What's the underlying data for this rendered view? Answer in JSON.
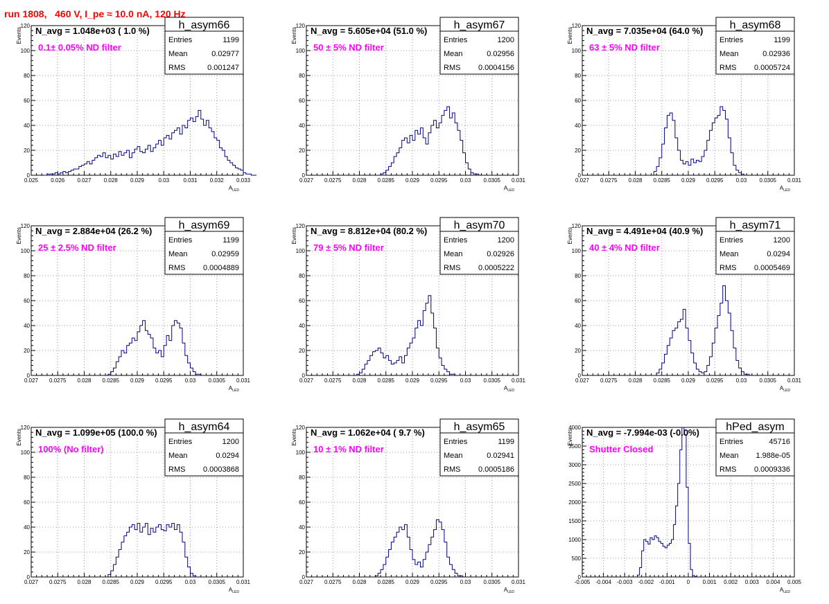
{
  "header": {
    "title": "run 1808,   460 V, I_pe ≈ 10.0 nA, 120 Hz"
  },
  "chart_data": [
    {
      "type": "histogram",
      "name": "h_asym66",
      "navg": "N_avg = 1.048e+03 ( 1.0 %)",
      "filter": "0.1± 0.05% ND filter",
      "stats": {
        "entries": "1199",
        "mean": "0.02977",
        "rms": "0.001247"
      },
      "xlim": [
        0.025,
        0.033
      ],
      "ylim": [
        0,
        120
      ],
      "xticks": [
        "0.025",
        "0.026",
        "0.027",
        "0.028",
        "0.029",
        "0.03",
        "0.031",
        "0.032",
        "0.033"
      ],
      "yticks": [
        "0",
        "20",
        "40",
        "60",
        "80",
        "100",
        "120"
      ],
      "xlabel": "A",
      "xlabel_sub": "LED",
      "ylabel": "Events",
      "x_start": 0.0255,
      "bin_width": 0.0001,
      "values": [
        0,
        1,
        1,
        1,
        2,
        1,
        2,
        3,
        2,
        3,
        4,
        5,
        5,
        7,
        8,
        9,
        11,
        9,
        12,
        14,
        16,
        15,
        18,
        14,
        16,
        13,
        17,
        15,
        19,
        16,
        18,
        20,
        14,
        18,
        21,
        23,
        19,
        18,
        21,
        24,
        19,
        22,
        25,
        28,
        24,
        30,
        32,
        29,
        34,
        36,
        38,
        33,
        40,
        38,
        44,
        46,
        43,
        47,
        52,
        45,
        40,
        44,
        38,
        35,
        30,
        28,
        22,
        20,
        15,
        12,
        10,
        8,
        6,
        5,
        4,
        2,
        1,
        1,
        0,
        0
      ]
    },
    {
      "type": "histogram",
      "name": "h_asym67",
      "navg": "N_avg = 5.605e+04 (51.0 %)",
      "filter": "50 ± 5% ND filter",
      "stats": {
        "entries": "1200",
        "mean": "0.02956",
        "rms": "0.0004156"
      },
      "xlim": [
        0.027,
        0.031
      ],
      "ylim": [
        0,
        120
      ],
      "xticks": [
        "0.027",
        "0.0275",
        "0.028",
        "0.0285",
        "0.029",
        "0.0295",
        "0.03",
        "0.0305",
        "0.031"
      ],
      "yticks": [
        "0",
        "20",
        "40",
        "60",
        "80",
        "100",
        "120"
      ],
      "xlabel": "A",
      "xlabel_sub": "LED",
      "ylabel": "Events",
      "x_start": 0.0284,
      "bin_width": 5e-05,
      "values": [
        1,
        2,
        4,
        7,
        10,
        15,
        18,
        22,
        28,
        30,
        26,
        32,
        28,
        36,
        33,
        38,
        30,
        25,
        34,
        40,
        44,
        38,
        42,
        48,
        52,
        55,
        46,
        50,
        42,
        36,
        28,
        18,
        10,
        5,
        2,
        1,
        1
      ]
    },
    {
      "type": "histogram",
      "name": "h_asym68",
      "navg": "N_avg = 7.035e+04 (64.0 %)",
      "filter": "63 ± 5% ND filter",
      "stats": {
        "entries": "1199",
        "mean": "0.02936",
        "rms": "0.0005724"
      },
      "xlim": [
        0.027,
        0.031
      ],
      "ylim": [
        0,
        120
      ],
      "xticks": [
        "0.027",
        "0.0275",
        "0.028",
        "0.0285",
        "0.029",
        "0.0295",
        "0.03",
        "0.0305",
        "0.031"
      ],
      "yticks": [
        "0",
        "20",
        "40",
        "60",
        "80",
        "100",
        "120"
      ],
      "xlabel": "A",
      "xlabel_sub": "LED",
      "ylabel": "Events",
      "x_start": 0.02835,
      "bin_width": 5e-05,
      "values": [
        3,
        7,
        14,
        25,
        38,
        48,
        50,
        44,
        30,
        20,
        12,
        9,
        11,
        8,
        13,
        10,
        12,
        11,
        15,
        20,
        28,
        36,
        42,
        46,
        48,
        55,
        52,
        45,
        30,
        18,
        8,
        4,
        2,
        1
      ]
    },
    {
      "type": "histogram",
      "name": "h_asym69",
      "navg": "N_avg = 2.884e+04 (26.2 %)",
      "filter": "25 ± 2.5% ND filter",
      "stats": {
        "entries": "1199",
        "mean": "0.02959",
        "rms": "0.0004889"
      },
      "xlim": [
        0.027,
        0.031
      ],
      "ylim": [
        0,
        120
      ],
      "xticks": [
        "0.027",
        "0.0275",
        "0.028",
        "0.0285",
        "0.029",
        "0.0295",
        "0.03",
        "0.0305",
        "0.031"
      ],
      "yticks": [
        "0",
        "20",
        "40",
        "60",
        "80",
        "100",
        "120"
      ],
      "xlabel": "A",
      "xlabel_sub": "LED",
      "ylabel": "Events",
      "x_start": 0.02845,
      "bin_width": 5e-05,
      "values": [
        1,
        3,
        6,
        11,
        15,
        20,
        18,
        24,
        26,
        30,
        28,
        35,
        40,
        44,
        36,
        33,
        30,
        22,
        18,
        20,
        15,
        24,
        32,
        28,
        40,
        44,
        42,
        38,
        26,
        16,
        10,
        6,
        3,
        1,
        1
      ]
    },
    {
      "type": "histogram",
      "name": "h_asym70",
      "navg": "N_avg = 8.812e+04 (80.2 %)",
      "filter": "79 ± 5% ND filter",
      "stats": {
        "entries": "1200",
        "mean": "0.02926",
        "rms": "0.0005222"
      },
      "xlim": [
        0.027,
        0.031
      ],
      "ylim": [
        0,
        120
      ],
      "xticks": [
        "0.027",
        "0.0275",
        "0.028",
        "0.0285",
        "0.029",
        "0.0295",
        "0.03",
        "0.0305",
        "0.031"
      ],
      "yticks": [
        "0",
        "20",
        "40",
        "60",
        "80",
        "100",
        "120"
      ],
      "xlabel": "A",
      "xlabel_sub": "LED",
      "ylabel": "Events",
      "x_start": 0.02795,
      "bin_width": 5e-05,
      "values": [
        1,
        2,
        5,
        9,
        12,
        16,
        19,
        20,
        22,
        18,
        14,
        16,
        12,
        9,
        10,
        12,
        15,
        10,
        16,
        22,
        26,
        30,
        38,
        44,
        40,
        52,
        58,
        64,
        50,
        38,
        22,
        14,
        8,
        5,
        3,
        1,
        1
      ]
    },
    {
      "type": "histogram",
      "name": "h_asym71",
      "navg": "N_avg = 4.491e+04 (40.9 %)",
      "filter": "40 ± 4% ND filter",
      "stats": {
        "entries": "1200",
        "mean": "0.0294",
        "rms": "0.0005469"
      },
      "xlim": [
        0.027,
        0.031
      ],
      "ylim": [
        0,
        120
      ],
      "xticks": [
        "0.027",
        "0.0275",
        "0.028",
        "0.0285",
        "0.029",
        "0.0295",
        "0.03",
        "0.0305",
        "0.031"
      ],
      "yticks": [
        "0",
        "20",
        "40",
        "60",
        "80",
        "100",
        "120"
      ],
      "xlabel": "A",
      "xlabel_sub": "LED",
      "ylabel": "Events",
      "x_start": 0.0284,
      "bin_width": 5e-05,
      "values": [
        2,
        5,
        10,
        17,
        24,
        30,
        36,
        38,
        43,
        45,
        53,
        38,
        28,
        18,
        10,
        5,
        3,
        2,
        3,
        8,
        15,
        26,
        38,
        48,
        58,
        72,
        60,
        50,
        36,
        22,
        12,
        6,
        3,
        1,
        1
      ]
    },
    {
      "type": "histogram",
      "name": "h_asym64",
      "navg": "N_avg = 1.099e+05 (100.0 %)",
      "filter": "100% (No filter)",
      "stats": {
        "entries": "1200",
        "mean": "0.0294",
        "rms": "0.0003868"
      },
      "xlim": [
        0.027,
        0.031
      ],
      "ylim": [
        0,
        120
      ],
      "xticks": [
        "0.027",
        "0.0275",
        "0.028",
        "0.0285",
        "0.029",
        "0.0295",
        "0.03",
        "0.0305",
        "0.031"
      ],
      "yticks": [
        "0",
        "20",
        "40",
        "60",
        "80",
        "100",
        "120"
      ],
      "xlabel": "A",
      "xlabel_sub": "LED",
      "ylabel": "Events",
      "x_start": 0.02845,
      "bin_width": 5e-05,
      "values": [
        2,
        5,
        10,
        16,
        22,
        28,
        33,
        36,
        40,
        42,
        38,
        43,
        36,
        40,
        43,
        34,
        39,
        36,
        40,
        42,
        38,
        37,
        42,
        40,
        43,
        38,
        42,
        36,
        28,
        16,
        8,
        3,
        1
      ]
    },
    {
      "type": "histogram",
      "name": "h_asym65",
      "navg": "N_avg = 1.062e+04 ( 9.7 %)",
      "filter": "10 ± 1% ND filter",
      "stats": {
        "entries": "1199",
        "mean": "0.02941",
        "rms": "0.0005186"
      },
      "xlim": [
        0.027,
        0.031
      ],
      "ylim": [
        0,
        120
      ],
      "xticks": [
        "0.027",
        "0.0275",
        "0.028",
        "0.0285",
        "0.029",
        "0.0295",
        "0.03",
        "0.0305",
        "0.031"
      ],
      "yticks": [
        "0",
        "20",
        "40",
        "60",
        "80",
        "100",
        "120"
      ],
      "xlabel": "A",
      "xlabel_sub": "LED",
      "ylabel": "Events",
      "x_start": 0.0283,
      "bin_width": 5e-05,
      "values": [
        1,
        3,
        6,
        10,
        16,
        22,
        28,
        32,
        36,
        40,
        38,
        42,
        32,
        22,
        14,
        10,
        12,
        8,
        14,
        20,
        26,
        32,
        38,
        46,
        44,
        38,
        28,
        16,
        10,
        6,
        3,
        1,
        1
      ]
    },
    {
      "type": "histogram",
      "name": "hPed_asym",
      "navg": "N_avg = -7.994e-03 (-0.0%)",
      "filter": "Shutter Closed",
      "stats": {
        "entries": "45716",
        "mean": "1.988e-05",
        "rms": "0.0009336"
      },
      "xlim": [
        -0.005,
        0.005
      ],
      "ylim": [
        0,
        4000
      ],
      "xticks": [
        "-0.005",
        "-0.004",
        "-0.003",
        "-0.002",
        "-0.001",
        "0",
        "0.001",
        "0.002",
        "0.003",
        "0.004",
        "0.005"
      ],
      "yticks": [
        "0",
        "500",
        "1000",
        "1500",
        "2000",
        "2500",
        "3000",
        "3500",
        "4000"
      ],
      "xlabel": "A",
      "xlabel_sub": "LED",
      "ylabel": "Events",
      "x_start": -0.0024,
      "bin_width": 0.0001,
      "values": [
        50,
        250,
        700,
        1000,
        950,
        880,
        1050,
        1000,
        1100,
        1050,
        950,
        900,
        820,
        780,
        850,
        900,
        1000,
        1400,
        1900,
        2500,
        3400,
        4000,
        3800,
        2400,
        900,
        200,
        40,
        10
      ]
    }
  ],
  "labels": {
    "entries": "Entries",
    "mean": "Mean",
    "rms": "RMS"
  }
}
